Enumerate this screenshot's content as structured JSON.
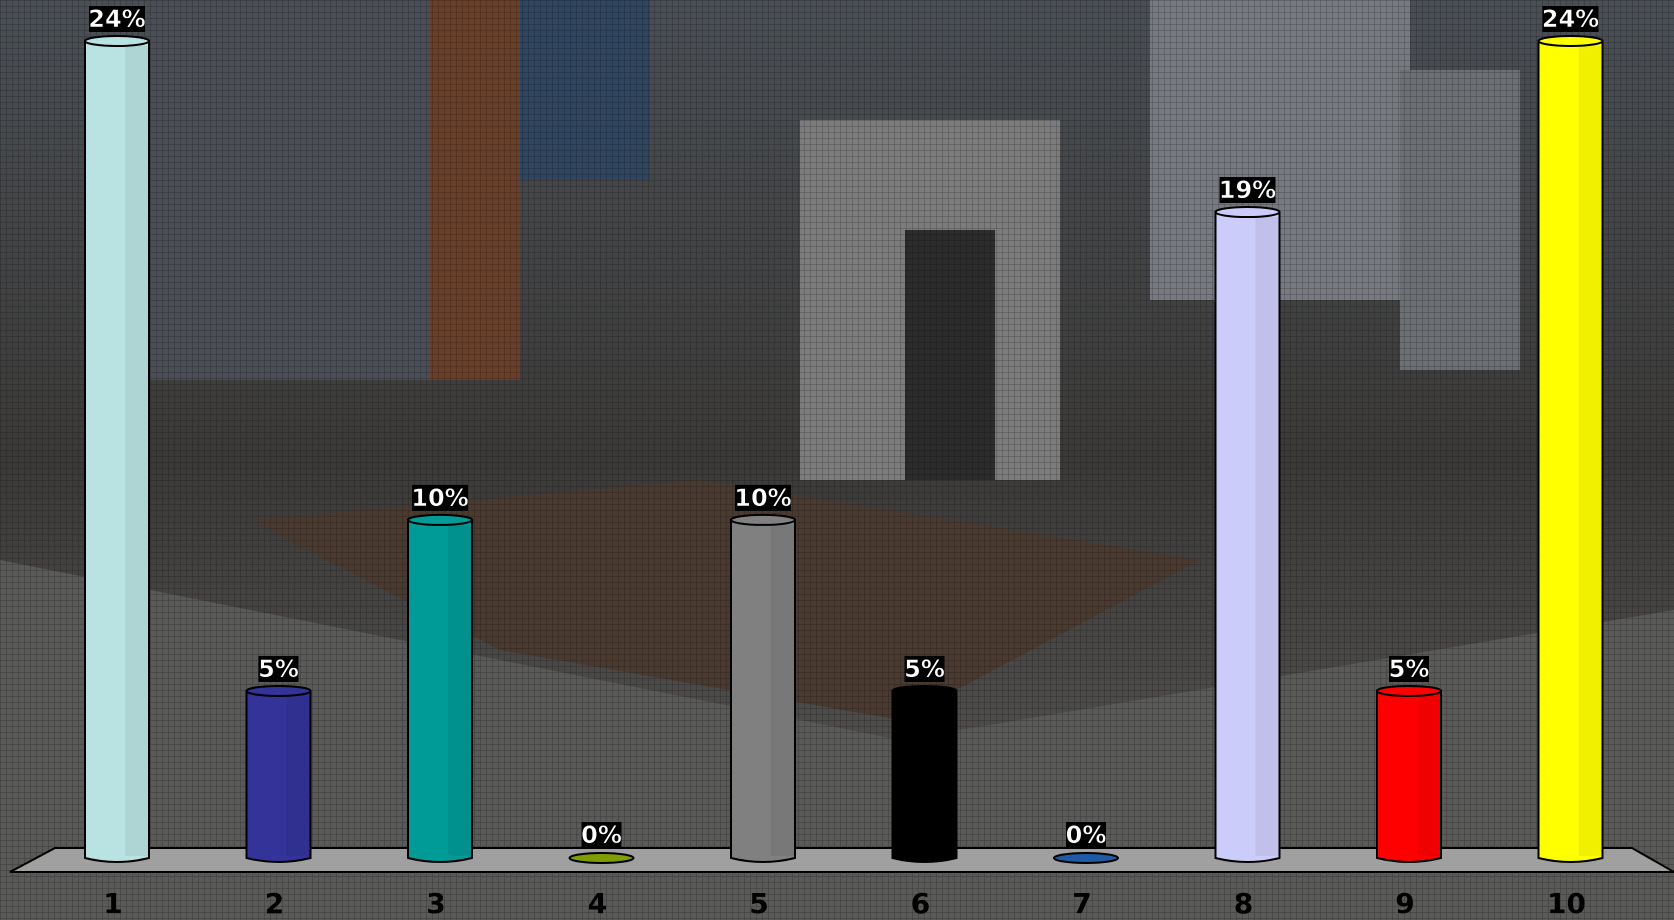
{
  "chart_data": {
    "type": "bar",
    "categories": [
      "1",
      "2",
      "3",
      "4",
      "5",
      "6",
      "7",
      "8",
      "9",
      "10"
    ],
    "values": [
      24,
      5,
      10,
      0,
      10,
      5,
      0,
      19,
      5,
      24
    ],
    "value_labels": [
      "24%",
      "5%",
      "10%",
      "0%",
      "10%",
      "5%",
      "0%",
      "19%",
      "5%",
      "24%"
    ],
    "colors": [
      "#b9e2e2",
      "#33339a",
      "#009a97",
      "#7f9c00",
      "#808080",
      "#000000",
      "#1f5aa6",
      "#ccccfa",
      "#ff0000",
      "#ffff00"
    ]
  }
}
